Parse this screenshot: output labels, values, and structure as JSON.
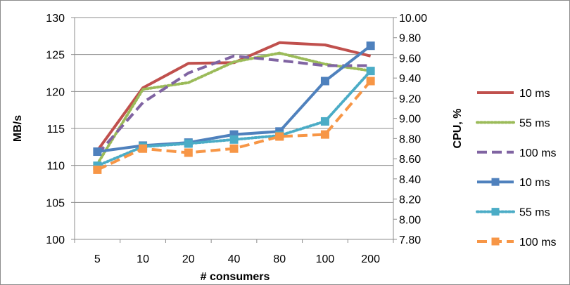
{
  "chart_data": {
    "type": "line",
    "categories": [
      "5",
      "10",
      "20",
      "40",
      "80",
      "100",
      "200"
    ],
    "xlabel": "# consumers",
    "ylabel": "MB/s",
    "y2label": "CPU, %",
    "ylim": [
      100,
      130
    ],
    "yticks": [
      "100",
      "105",
      "110",
      "115",
      "120",
      "125",
      "130"
    ],
    "y2lim": [
      7.8,
      10.0
    ],
    "y2ticks": [
      "7.80",
      "8.00",
      "8.20",
      "8.40",
      "8.60",
      "8.80",
      "9.00",
      "9.20",
      "9.40",
      "9.60",
      "9.80",
      "10.00"
    ],
    "grid": "horizontal",
    "legend_position": "right",
    "series": [
      {
        "name": "10 ms",
        "axis": "left",
        "color": "#c0504d",
        "style": "solid",
        "marker": "none",
        "values": [
          112.0,
          120.5,
          123.8,
          123.9,
          126.6,
          126.3,
          124.8
        ]
      },
      {
        "name": "55 ms",
        "axis": "left",
        "color": "#9bbb59",
        "style": "dotted",
        "marker": "none",
        "values": [
          110.2,
          120.3,
          121.2,
          124.0,
          125.2,
          123.7,
          122.8
        ]
      },
      {
        "name": "100 ms",
        "axis": "left",
        "color": "#8064a2",
        "style": "dashed",
        "marker": "none",
        "values": [
          111.5,
          118.5,
          122.5,
          124.8,
          124.2,
          123.5,
          123.5
        ]
      },
      {
        "name": "10 ms",
        "axis": "right",
        "color": "#4f81bd",
        "style": "solid",
        "marker": "square",
        "values": [
          8.67,
          8.73,
          8.76,
          8.84,
          8.87,
          9.37,
          9.72
        ]
      },
      {
        "name": "55 ms",
        "axis": "right",
        "color": "#4bacc6",
        "style": "dotted",
        "marker": "square",
        "values": [
          8.53,
          8.72,
          8.75,
          8.79,
          8.83,
          8.97,
          9.47
        ]
      },
      {
        "name": "100 ms",
        "axis": "right",
        "color": "#f79646",
        "style": "dashed",
        "marker": "square",
        "values": [
          8.49,
          8.7,
          8.66,
          8.7,
          8.82,
          8.84,
          9.37
        ]
      }
    ]
  }
}
